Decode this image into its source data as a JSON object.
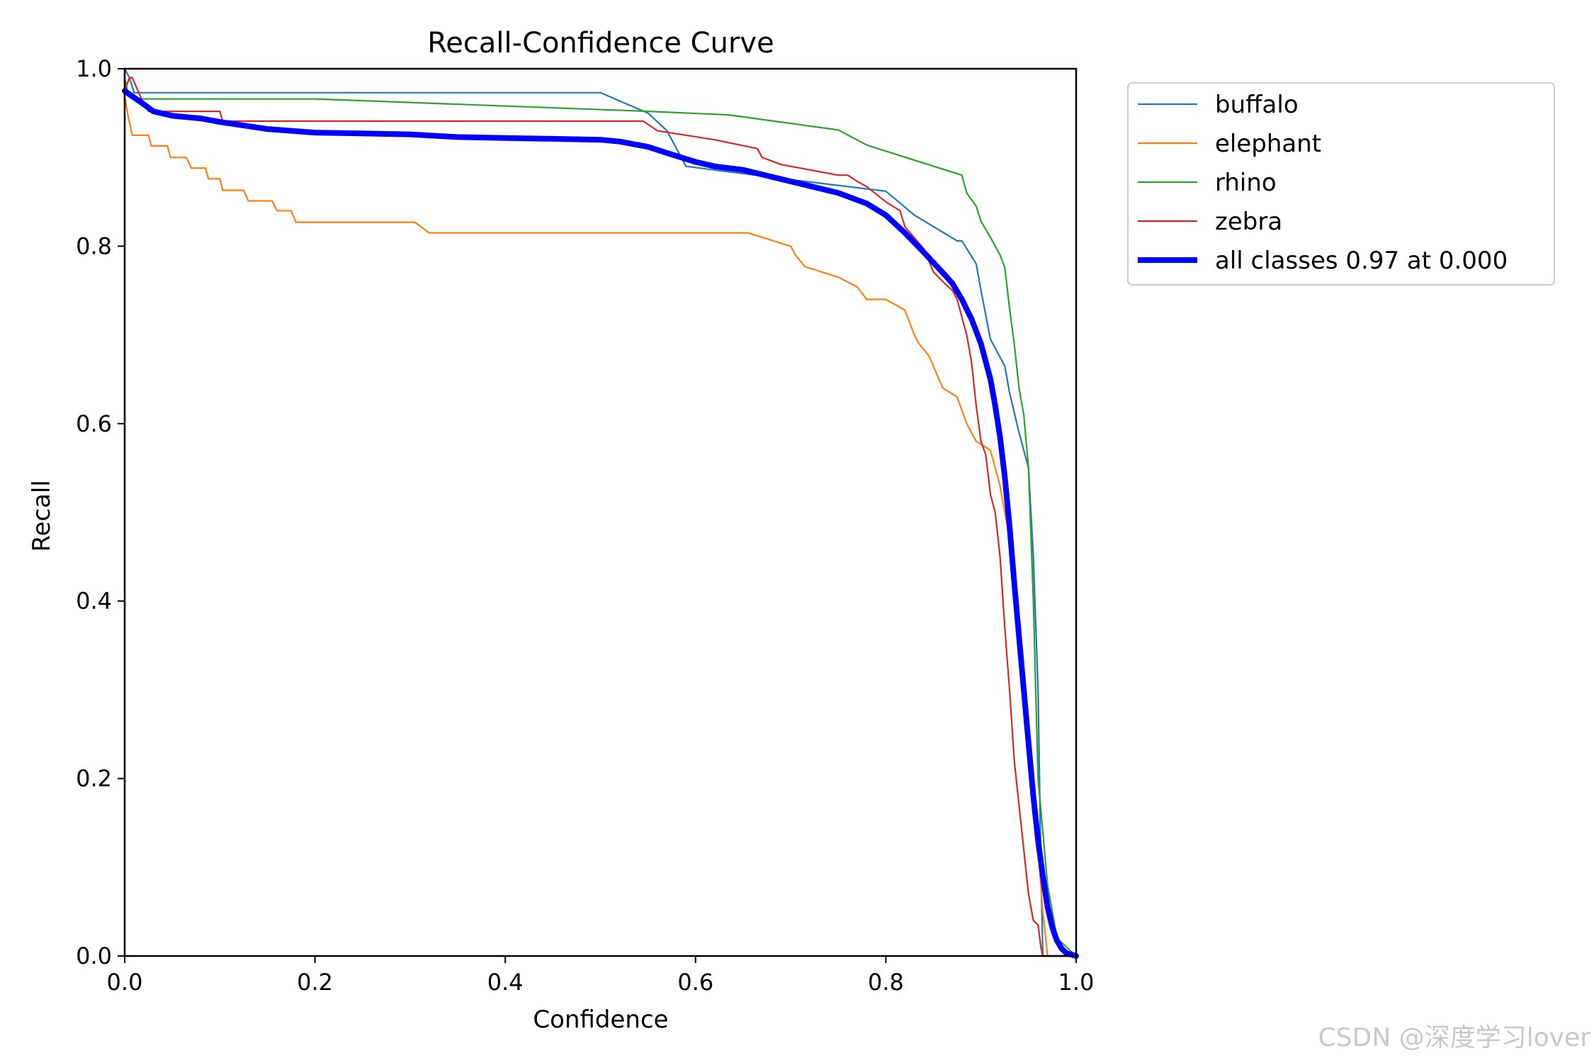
{
  "chart_data": {
    "type": "line",
    "title": "Recall-Confidence Curve",
    "xlabel": "Confidence",
    "ylabel": "Recall",
    "xlim": [
      0,
      1
    ],
    "ylim": [
      0,
      1
    ],
    "xticks": [
      "0.0",
      "0.2",
      "0.4",
      "0.6",
      "0.8",
      "1.0"
    ],
    "yticks": [
      "0.0",
      "0.2",
      "0.4",
      "0.6",
      "0.8",
      "1.0"
    ],
    "grid": false,
    "legend_position": "outside-top-right",
    "series": [
      {
        "name": "buffalo",
        "color": "#1f77b4",
        "x": [
          0,
          0.005,
          0.01,
          0.5,
          0.55,
          0.57,
          0.58,
          0.59,
          0.7,
          0.8,
          0.83,
          0.875,
          0.88,
          0.895,
          0.9,
          0.91,
          0.925,
          0.93,
          0.94,
          0.95,
          0.955,
          0.96,
          0.963,
          0.965,
          1.0
        ],
        "y": [
          1.0,
          0.99,
          0.973,
          0.973,
          0.95,
          0.93,
          0.91,
          0.89,
          0.875,
          0.862,
          0.835,
          0.806,
          0.806,
          0.78,
          0.75,
          0.695,
          0.665,
          0.635,
          0.59,
          0.55,
          0.45,
          0.3,
          0.1,
          0.0,
          0.0
        ]
      },
      {
        "name": "elephant",
        "color": "#ff7f0e",
        "x": [
          0,
          0.003,
          0.008,
          0.025,
          0.028,
          0.045,
          0.048,
          0.065,
          0.07,
          0.085,
          0.088,
          0.1,
          0.103,
          0.125,
          0.13,
          0.155,
          0.16,
          0.175,
          0.18,
          0.195,
          0.198,
          0.305,
          0.32,
          0.655,
          0.7,
          0.705,
          0.715,
          0.75,
          0.77,
          0.78,
          0.8,
          0.82,
          0.83,
          0.835,
          0.845,
          0.85,
          0.855,
          0.86,
          0.875,
          0.885,
          0.895,
          0.91,
          0.92,
          0.93,
          0.94,
          0.95,
          0.96,
          0.965,
          0.97,
          1.0
        ],
        "y": [
          0.97,
          0.95,
          0.925,
          0.925,
          0.913,
          0.913,
          0.9,
          0.9,
          0.888,
          0.888,
          0.876,
          0.876,
          0.863,
          0.863,
          0.851,
          0.851,
          0.84,
          0.84,
          0.827,
          0.827,
          0.827,
          0.827,
          0.815,
          0.815,
          0.8,
          0.79,
          0.777,
          0.765,
          0.754,
          0.74,
          0.74,
          0.728,
          0.7,
          0.69,
          0.677,
          0.665,
          0.652,
          0.64,
          0.63,
          0.6,
          0.58,
          0.57,
          0.53,
          0.47,
          0.38,
          0.25,
          0.12,
          0.05,
          0.0,
          0.0
        ]
      },
      {
        "name": "rhino",
        "color": "#2ca02c",
        "x": [
          0,
          0.003,
          0.008,
          0.2,
          0.55,
          0.635,
          0.75,
          0.78,
          0.88,
          0.885,
          0.895,
          0.9,
          0.91,
          0.92,
          0.925,
          0.93,
          0.935,
          0.94,
          0.945,
          0.95,
          0.955,
          0.96,
          0.97,
          0.98,
          1.0
        ],
        "y": [
          0.99,
          0.975,
          0.966,
          0.966,
          0.952,
          0.948,
          0.931,
          0.914,
          0.88,
          0.86,
          0.845,
          0.828,
          0.81,
          0.79,
          0.776,
          0.73,
          0.69,
          0.64,
          0.61,
          0.55,
          0.4,
          0.2,
          0.08,
          0.02,
          0.0
        ]
      },
      {
        "name": "zebra",
        "color": "#d62728",
        "x": [
          0,
          0.005,
          0.008,
          0.02,
          0.025,
          0.1,
          0.103,
          0.545,
          0.56,
          0.62,
          0.665,
          0.67,
          0.69,
          0.72,
          0.75,
          0.76,
          0.77,
          0.78,
          0.8,
          0.815,
          0.82,
          0.84,
          0.85,
          0.86,
          0.87,
          0.875,
          0.88,
          0.885,
          0.89,
          0.895,
          0.9,
          0.905,
          0.91,
          0.915,
          0.92,
          0.925,
          0.93,
          0.935,
          0.94,
          0.945,
          0.95,
          0.955,
          0.96,
          0.963,
          0.965,
          0.97,
          1.0
        ],
        "y": [
          0.975,
          0.99,
          0.99,
          0.96,
          0.952,
          0.952,
          0.941,
          0.941,
          0.93,
          0.92,
          0.91,
          0.9,
          0.892,
          0.886,
          0.88,
          0.88,
          0.873,
          0.867,
          0.85,
          0.84,
          0.822,
          0.797,
          0.771,
          0.76,
          0.75,
          0.74,
          0.72,
          0.7,
          0.67,
          0.62,
          0.58,
          0.565,
          0.52,
          0.5,
          0.45,
          0.37,
          0.3,
          0.22,
          0.17,
          0.12,
          0.07,
          0.04,
          0.035,
          0.01,
          0.0,
          0.0,
          0.0
        ]
      },
      {
        "name": "all classes 0.97 at 0.000",
        "color": "#0000ff",
        "bold": true,
        "x": [
          0,
          0.02,
          0.03,
          0.05,
          0.08,
          0.1,
          0.15,
          0.2,
          0.3,
          0.35,
          0.4,
          0.45,
          0.5,
          0.52,
          0.55,
          0.57,
          0.6,
          0.62,
          0.65,
          0.7,
          0.75,
          0.78,
          0.8,
          0.82,
          0.84,
          0.86,
          0.87,
          0.88,
          0.89,
          0.9,
          0.91,
          0.915,
          0.92,
          0.925,
          0.93,
          0.935,
          0.94,
          0.945,
          0.95,
          0.955,
          0.96,
          0.965,
          0.97,
          0.975,
          0.98,
          0.985,
          0.99,
          1.0
        ],
        "y": [
          0.975,
          0.96,
          0.952,
          0.947,
          0.944,
          0.94,
          0.932,
          0.928,
          0.926,
          0.923,
          0.922,
          0.921,
          0.92,
          0.918,
          0.912,
          0.905,
          0.895,
          0.89,
          0.886,
          0.873,
          0.86,
          0.848,
          0.835,
          0.815,
          0.793,
          0.77,
          0.758,
          0.74,
          0.718,
          0.69,
          0.65,
          0.62,
          0.585,
          0.54,
          0.485,
          0.42,
          0.36,
          0.3,
          0.24,
          0.18,
          0.13,
          0.09,
          0.055,
          0.032,
          0.017,
          0.008,
          0.003,
          0.0
        ]
      }
    ]
  },
  "watermark": "CSDN @深度学习lover"
}
